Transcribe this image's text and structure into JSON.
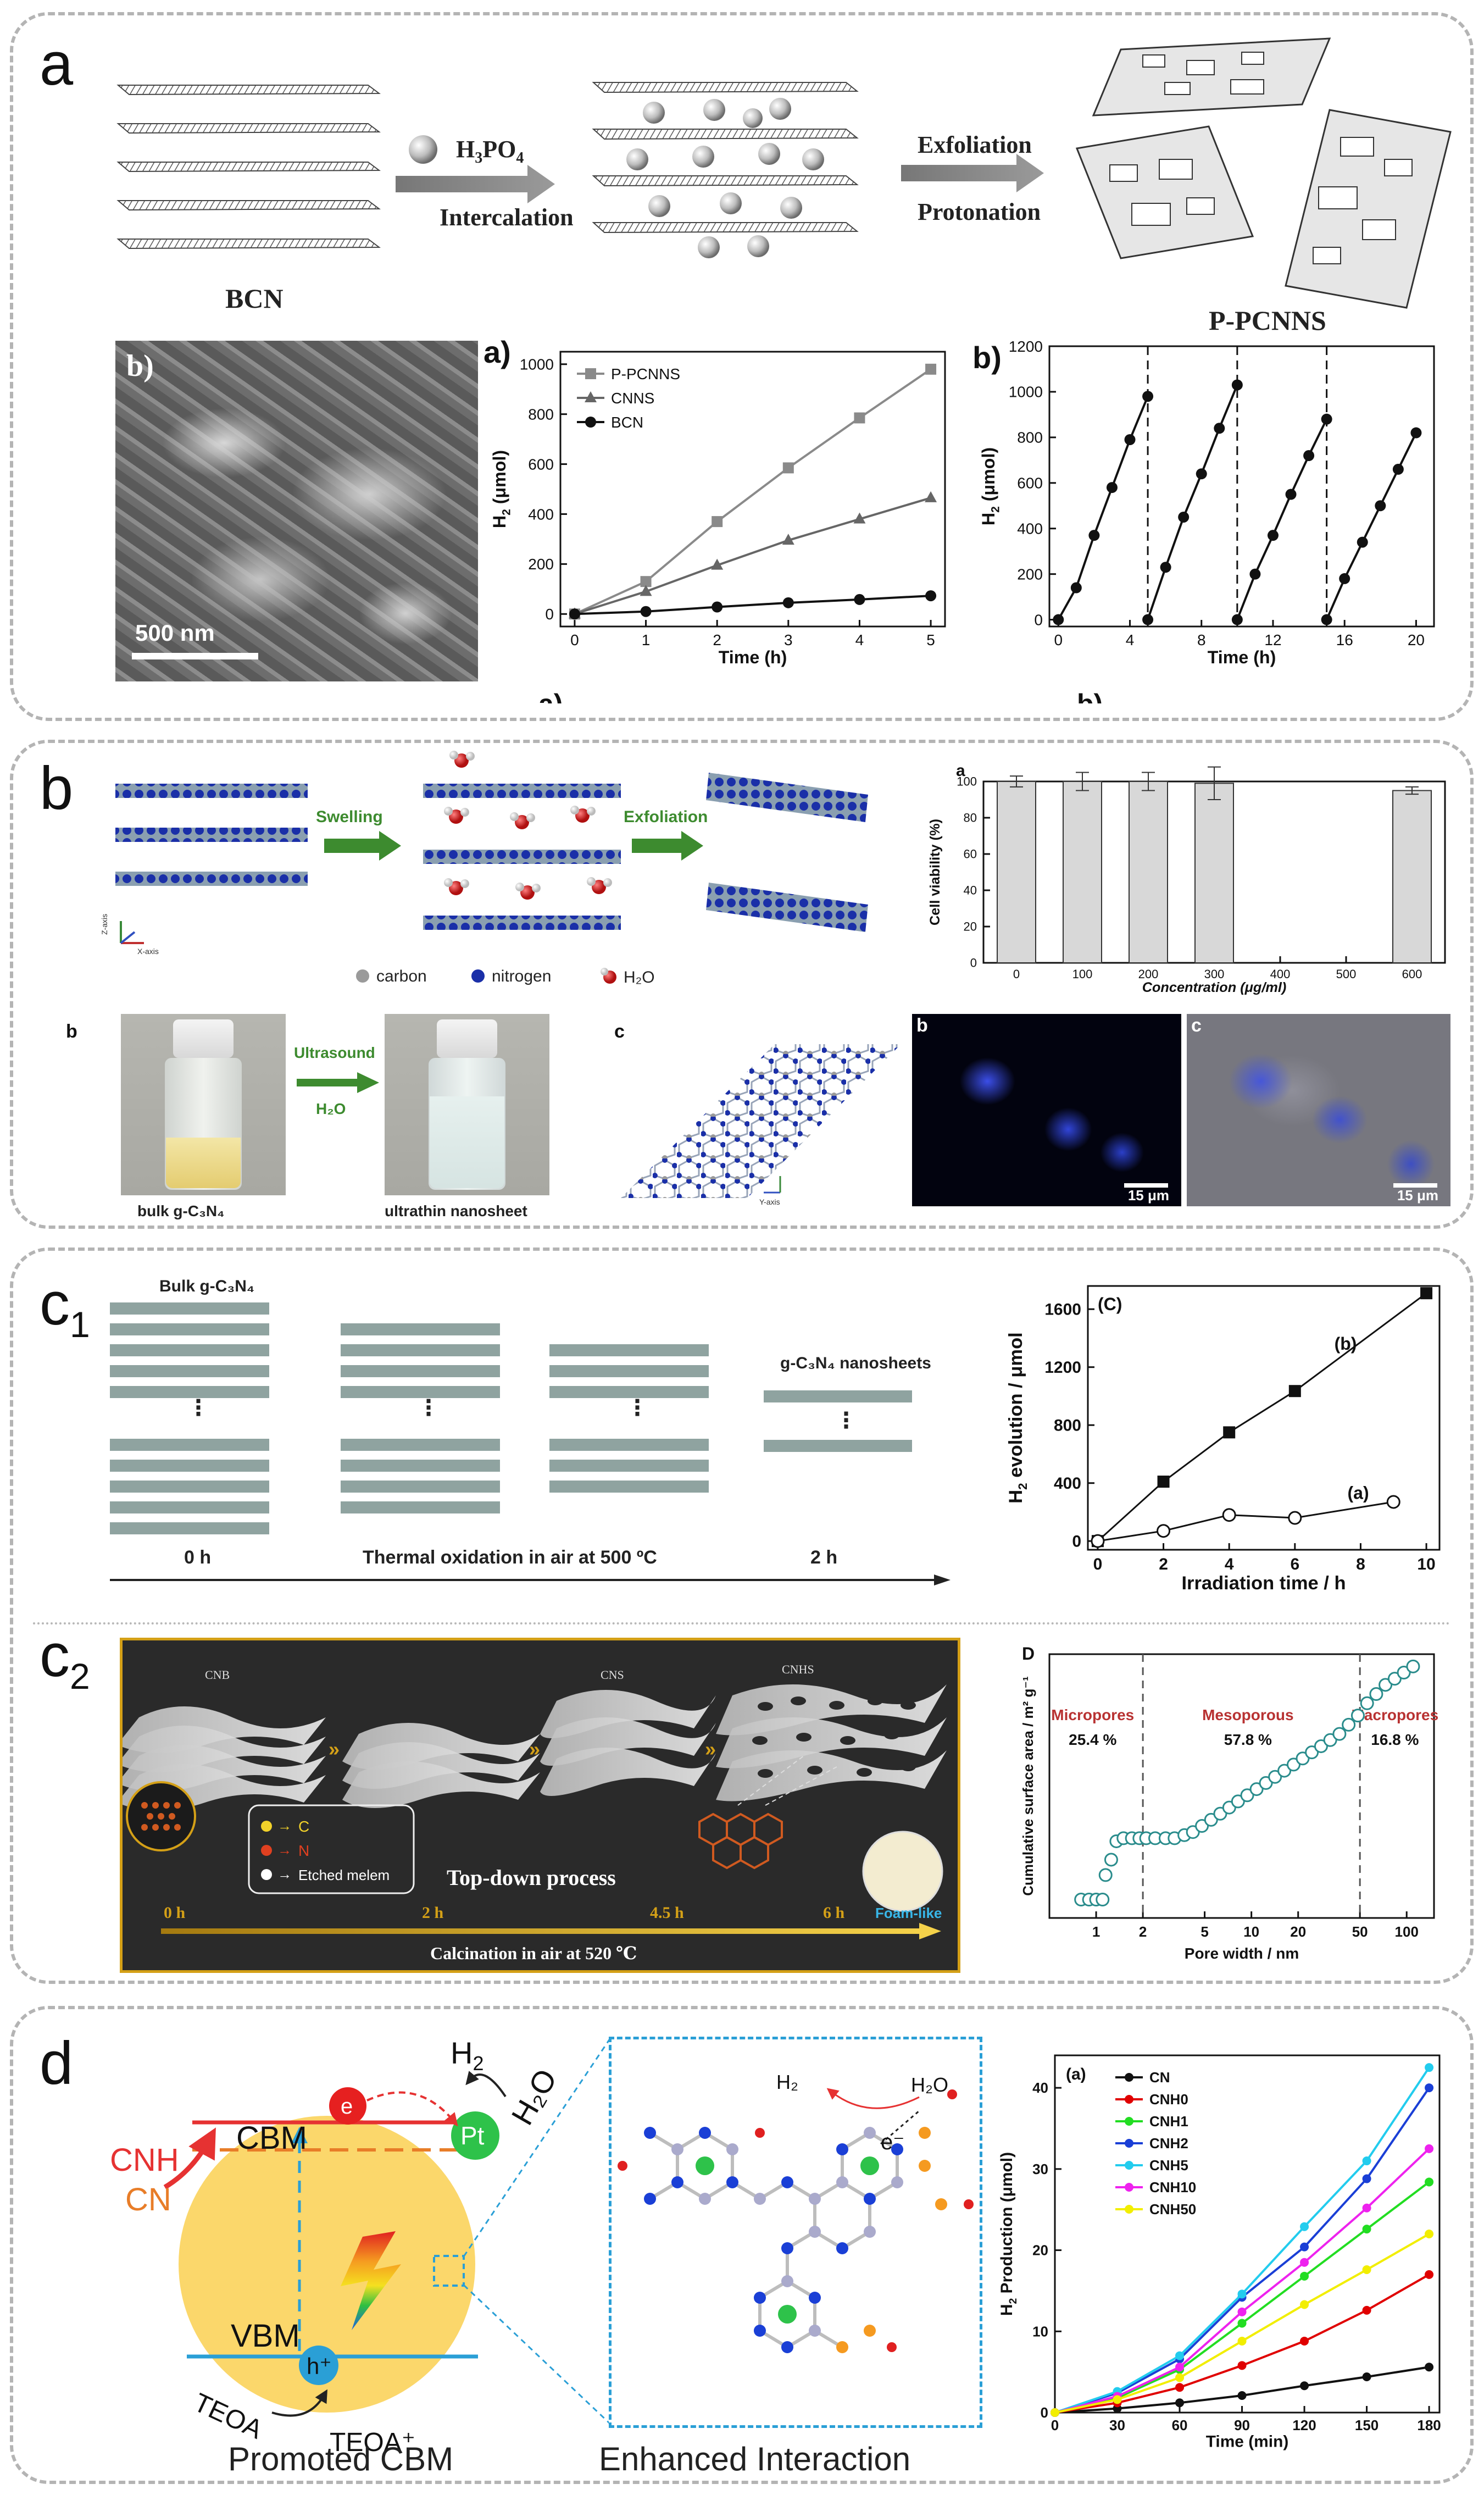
{
  "panel_labels": {
    "a": "a",
    "b": "b",
    "c1_main": "c",
    "c1_sub": "1",
    "c2_main": "c",
    "c2_sub": "2",
    "d": "d"
  },
  "panel_a": {
    "schematic": {
      "reagent_prefix": "H",
      "reagent_sub1": "3",
      "reagent_mid": "PO",
      "reagent_sub2": "4",
      "intercalation": "Intercalation",
      "exfoliation": "Exfoliation",
      "protonation": "Protonation",
      "bcn": "BCN",
      "ppcnns": "P-PCNNS"
    },
    "sem": {
      "letter": "b)",
      "scale": "500 nm"
    },
    "clip_a": "a)",
    "clip_b": "b)"
  },
  "panel_b": {
    "schematic": {
      "swelling": "Swelling",
      "exfoliation": "Exfoliation",
      "legend_carbon": "carbon",
      "legend_nitrogen": "nitrogen",
      "legend_water": "H₂O",
      "axis_z": "Z-axis",
      "axis_x": "X-axis",
      "axis_y": "Y-axis"
    },
    "vials": {
      "letter": "b",
      "ultrasound": "Ultrasound",
      "water": "H₂O",
      "bulk": "bulk g-C₃N₄",
      "nanosheet": "ultrathin nanosheet"
    },
    "lattice_letter": "c",
    "fluor_b": {
      "letter": "b",
      "scale": "15 μm"
    },
    "fluor_c": {
      "letter": "c",
      "scale": "15 μm"
    }
  },
  "panel_c1": {
    "title": "Bulk g-C₃N₄",
    "nanosheets_title": "g-C₃N₄ nanosheets",
    "time_start": "0 h",
    "process": "Thermal oxidation in air at 500 ºC",
    "time_end": "2 h"
  },
  "panel_c2": {
    "cnb": "CNB",
    "cns": "CNS",
    "cnhs": "CNHS",
    "leg_c": "C",
    "leg_n": "N",
    "leg_melem": "Etched melem",
    "topdown": "Top-down  process",
    "foam": "Foam-like",
    "times": [
      "0 h",
      "2 h",
      "4.5 h",
      "6 h"
    ],
    "calcination": "Calcination in air at 520 ℃"
  },
  "panel_d": {
    "cnh": "CNH",
    "cn": "CN",
    "cbm": "CBM",
    "vbm": "VBM",
    "e": "e",
    "pt": "Pt",
    "h2": "H",
    "h2o": "H₂O",
    "hplus": "h⁺",
    "teoa": "TEOA",
    "teoa_plus": "TEOA⁺",
    "caption_left": "Promoted CBM",
    "caption_right": "Enhanced Interaction",
    "inset_h2": "H₂",
    "inset_h2o": "H₂O",
    "inset_e": "e⁻"
  },
  "chart_data": [
    {
      "id": "a_a",
      "type": "line",
      "letter": "a)",
      "xlabel": "Time (h)",
      "ylabel_main": "H",
      "ylabel_sub": "2",
      "ylabel_unit": " (μmol)",
      "xlim": [
        -0.2,
        5.2
      ],
      "ylim": [
        -50,
        1050
      ],
      "xticks": [
        0,
        1,
        2,
        3,
        4,
        5
      ],
      "yticks": [
        0,
        200,
        400,
        600,
        800,
        1000
      ],
      "legend": "top-left",
      "series": [
        {
          "name": "P-PCNNS",
          "marker": "square",
          "color": "#8a8a8a",
          "x": [
            0,
            1,
            2,
            3,
            4,
            5
          ],
          "y": [
            0,
            130,
            370,
            585,
            785,
            980
          ]
        },
        {
          "name": "CNNS",
          "marker": "triangle",
          "color": "#666666",
          "x": [
            0,
            1,
            2,
            3,
            4,
            5
          ],
          "y": [
            0,
            90,
            195,
            295,
            380,
            465
          ]
        },
        {
          "name": "BCN",
          "marker": "circle",
          "color": "#111111",
          "x": [
            0,
            1,
            2,
            3,
            4,
            5
          ],
          "y": [
            0,
            10,
            28,
            45,
            58,
            73
          ]
        }
      ]
    },
    {
      "id": "a_b",
      "type": "line",
      "letter": "b)",
      "xlabel": "Time (h)",
      "ylabel_main": "H",
      "ylabel_sub": "2",
      "ylabel_unit": " (μmol)",
      "xlim": [
        -0.5,
        21
      ],
      "ylim": [
        -30,
        1200
      ],
      "xticks": [
        0,
        4,
        8,
        12,
        16,
        20
      ],
      "yticks": [
        0,
        200,
        400,
        600,
        800,
        1000,
        1200
      ],
      "dividers": [
        5,
        10,
        15
      ],
      "series": [
        {
          "name": "",
          "color": "#111111",
          "x": [
            0,
            1,
            2,
            3,
            4,
            5
          ],
          "y": [
            0,
            140,
            370,
            580,
            790,
            980
          ]
        },
        {
          "name": "",
          "color": "#111111",
          "x": [
            5,
            6,
            7,
            8,
            9,
            10
          ],
          "y": [
            0,
            230,
            450,
            640,
            840,
            1030
          ]
        },
        {
          "name": "",
          "color": "#111111",
          "x": [
            10,
            11,
            12,
            13,
            14,
            15
          ],
          "y": [
            0,
            200,
            370,
            550,
            720,
            880
          ]
        },
        {
          "name": "",
          "color": "#111111",
          "x": [
            15,
            16,
            17,
            18,
            19,
            20
          ],
          "y": [
            0,
            180,
            340,
            500,
            660,
            820
          ]
        }
      ]
    },
    {
      "id": "b_a",
      "type": "bar",
      "letter": "a",
      "xlabel": "Concentration (μg/ml)",
      "ylabel": "Cell viability (%)",
      "xlim": [
        -50,
        650
      ],
      "ylim": [
        0,
        100
      ],
      "xticks": [
        0,
        100,
        200,
        300,
        400,
        500,
        600
      ],
      "yticks": [
        0,
        20,
        40,
        60,
        80,
        100
      ],
      "categories": [
        0,
        100,
        200,
        300,
        600
      ],
      "values": [
        100,
        100,
        100,
        99,
        95
      ],
      "errors": [
        3,
        5,
        5,
        9,
        2
      ]
    },
    {
      "id": "c1",
      "type": "line",
      "letter": "(C)",
      "xlabel": "Irradiation time / h",
      "ylabel_main": "H",
      "ylabel_sub": "2",
      "ylabel_unit": " evolution / μmol",
      "xlim": [
        -0.3,
        10.4
      ],
      "ylim": [
        -60,
        1760
      ],
      "xticks": [
        0,
        2,
        4,
        6,
        8,
        10
      ],
      "yticks": [
        0,
        400,
        800,
        1200,
        1600
      ],
      "series": [
        {
          "name": "(b)",
          "marker": "square",
          "color": "#111111",
          "x": [
            0,
            2,
            4,
            6,
            10
          ],
          "y": [
            0,
            410,
            750,
            1035,
            1710
          ]
        },
        {
          "name": "(a)",
          "marker": "open-circle",
          "color": "#111111",
          "x": [
            0,
            2,
            4,
            6,
            9
          ],
          "y": [
            0,
            70,
            180,
            160,
            270
          ]
        }
      ]
    },
    {
      "id": "c2",
      "type": "scatter",
      "letter": "D",
      "xlabel": "Pore width / nm",
      "ylabel": "Cumulative surface area / m² g⁻¹",
      "xscale": "log",
      "xlim": [
        0.5,
        150
      ],
      "xticks": [
        1,
        2,
        5,
        10,
        20,
        50,
        100
      ],
      "dividers": [
        2,
        50
      ],
      "regions": [
        {
          "label": "Micropores",
          "value": "25.4 %"
        },
        {
          "label": "Mesoporous",
          "value": "57.8 %"
        },
        {
          "label": "Macropores",
          "value": "16.8 %"
        }
      ],
      "x": [
        0.8,
        0.9,
        1.0,
        1.1,
        1.15,
        1.25,
        1.35,
        1.5,
        1.7,
        1.9,
        2.1,
        2.4,
        2.8,
        3.2,
        3.7,
        4.2,
        4.8,
        5.5,
        6.3,
        7.2,
        8.2,
        9.4,
        10.8,
        12.4,
        14.2,
        16.3,
        18.7,
        21.4,
        24.5,
        28.1,
        32.2,
        36.9,
        42.3,
        48.5,
        55.6,
        63.7,
        73.0,
        83.7,
        95.9,
        110
      ],
      "y": [
        0,
        0,
        0,
        0,
        8,
        13,
        19,
        20,
        20,
        20,
        20,
        20,
        20,
        20,
        21,
        22,
        24,
        26,
        28,
        30,
        32,
        34,
        36,
        38,
        40,
        42,
        44,
        46,
        48,
        50,
        52,
        54,
        57,
        60,
        64,
        67,
        70,
        72,
        74,
        76
      ]
    },
    {
      "id": "d",
      "type": "line",
      "letter": "(a)",
      "xlabel": "Time (min)",
      "ylabel_main": "H",
      "ylabel_sub": "2",
      "ylabel_unit": " Production (μmol)",
      "xlim": [
        0,
        185
      ],
      "ylim": [
        0,
        44
      ],
      "xticks": [
        0,
        30,
        60,
        90,
        120,
        150,
        180
      ],
      "yticks": [
        0,
        10,
        20,
        30,
        40
      ],
      "legend": "top-left",
      "series": [
        {
          "name": "CN",
          "color": "#111111",
          "x": [
            0,
            30,
            60,
            90,
            120,
            150,
            180
          ],
          "y": [
            0,
            0.5,
            1.2,
            2.1,
            3.3,
            4.4,
            5.6
          ]
        },
        {
          "name": "CNH0",
          "color": "#e00000",
          "x": [
            0,
            30,
            60,
            90,
            120,
            150,
            180
          ],
          "y": [
            0,
            1.2,
            3.1,
            5.8,
            8.8,
            12.6,
            17.0
          ]
        },
        {
          "name": "CNH1",
          "color": "#22dd22",
          "x": [
            0,
            30,
            60,
            90,
            120,
            150,
            180
          ],
          "y": [
            0,
            1.8,
            5.3,
            11.0,
            16.8,
            22.6,
            28.4
          ]
        },
        {
          "name": "CNH2",
          "color": "#1a3fd6",
          "x": [
            0,
            30,
            60,
            90,
            120,
            150,
            180
          ],
          "y": [
            0,
            2.4,
            6.6,
            14.2,
            20.4,
            28.8,
            40.0
          ]
        },
        {
          "name": "CNH5",
          "color": "#22ccee",
          "x": [
            0,
            30,
            60,
            90,
            120,
            150,
            180
          ],
          "y": [
            0,
            2.6,
            7.0,
            14.6,
            22.9,
            31.0,
            42.5
          ]
        },
        {
          "name": "CNH10",
          "color": "#ee22ee",
          "x": [
            0,
            30,
            60,
            90,
            120,
            150,
            180
          ],
          "y": [
            0,
            2.0,
            5.6,
            12.4,
            18.5,
            25.2,
            32.5
          ]
        },
        {
          "name": "CNH50",
          "color": "#f2ee00",
          "x": [
            0,
            30,
            60,
            90,
            120,
            150,
            180
          ],
          "y": [
            0,
            1.6,
            4.3,
            8.8,
            13.3,
            17.6,
            22.0
          ]
        }
      ]
    }
  ]
}
